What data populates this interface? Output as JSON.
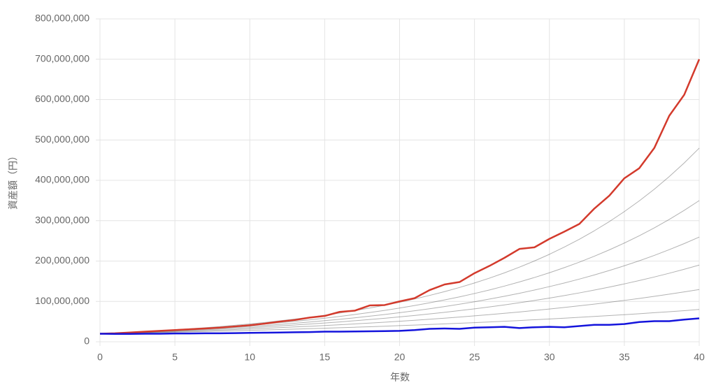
{
  "chart_data": {
    "type": "line",
    "x_label": "年数",
    "y_label": "資産額（円）",
    "x": [
      0,
      1,
      2,
      3,
      4,
      5,
      6,
      7,
      8,
      9,
      10,
      11,
      12,
      13,
      14,
      15,
      16,
      17,
      18,
      19,
      20,
      21,
      22,
      23,
      24,
      25,
      26,
      27,
      28,
      29,
      30,
      31,
      32,
      33,
      34,
      35,
      36,
      37,
      38,
      39,
      40
    ],
    "xlim": [
      0,
      40
    ],
    "xticks": [
      0,
      5,
      10,
      15,
      20,
      25,
      30,
      35,
      40
    ],
    "ylim": [
      0,
      800000000
    ],
    "yticks": [
      0,
      {
        "value": 100000000,
        "label": "100,000,000"
      },
      {
        "value": 200000000,
        "label": "200,000,000"
      },
      {
        "value": 300000000,
        "label": "300,000,000"
      },
      {
        "value": 400000000,
        "label": "400,000,000"
      },
      {
        "value": 500000000,
        "label": "500,000,000"
      },
      {
        "value": 600000000,
        "label": "600,000,000"
      },
      {
        "value": 700000000,
        "label": "700,000,000"
      },
      {
        "value": 800000000,
        "label": "800,000,000"
      }
    ],
    "grid": true,
    "series": [
      {
        "color": "rgba(0,0,0,0.3)",
        "values": [
          20000000,
          20700000,
          21400000,
          22200000,
          23000000,
          23800000,
          24600000,
          25500000,
          26400000,
          27300000,
          28300000,
          29300000,
          30300000,
          31400000,
          32500000,
          33600000,
          34800000,
          36000000,
          37300000,
          38600000,
          40000000,
          41400000,
          42800000,
          44300000,
          45900000,
          47500000,
          49200000,
          50900000,
          52700000,
          54600000,
          56500000,
          58500000,
          60500000,
          62700000,
          64900000,
          67200000,
          69500000,
          72000000,
          74500000,
          77100000,
          80000000
        ]
      },
      {
        "color": "rgba(0,0,0,0.3)",
        "values": [
          20000000,
          21000000,
          22000000,
          23000000,
          24100000,
          25300000,
          26500000,
          27700000,
          29100000,
          30400000,
          31900000,
          33400000,
          35000000,
          36700000,
          38400000,
          40300000,
          42200000,
          44200000,
          46300000,
          48500000,
          50800000,
          53300000,
          55800000,
          58500000,
          61300000,
          64200000,
          67300000,
          70500000,
          73900000,
          77400000,
          81100000,
          85000000,
          89100000,
          93300000,
          97800000,
          102500000,
          107400000,
          112500000,
          117900000,
          123600000,
          129500000
        ]
      },
      {
        "color": "rgba(0,0,0,0.3)",
        "values": [
          20000000,
          21200000,
          22400000,
          23700000,
          25000000,
          26500000,
          28000000,
          29600000,
          31400000,
          33200000,
          35100000,
          37100000,
          39300000,
          41600000,
          44000000,
          46500000,
          49200000,
          52100000,
          55100000,
          58300000,
          61600000,
          65200000,
          69000000,
          73000000,
          77200000,
          81700000,
          86400000,
          91400000,
          96700000,
          102300000,
          108200000,
          114500000,
          121100000,
          128100000,
          135500000,
          143400000,
          151700000,
          160500000,
          169800000,
          179600000,
          190000000
        ]
      },
      {
        "color": "rgba(0,0,0,0.3)",
        "values": [
          20000000,
          21300000,
          22700000,
          24200000,
          25800000,
          27500000,
          29400000,
          31300000,
          33400000,
          35600000,
          38000000,
          40500000,
          43100000,
          46000000,
          49000000,
          52300000,
          55700000,
          59400000,
          63400000,
          67500000,
          72000000,
          76800000,
          81900000,
          87300000,
          93000000,
          99200000,
          105800000,
          112800000,
          120200000,
          128200000,
          136700000,
          145700000,
          155300000,
          165600000,
          176600000,
          188300000,
          200700000,
          214000000,
          228200000,
          243300000,
          259400000
        ]
      },
      {
        "color": "rgba(0,0,0,0.3)",
        "values": [
          20000000,
          21500000,
          23100000,
          24800000,
          26600000,
          28600000,
          30700000,
          33000000,
          35400000,
          38100000,
          40900000,
          43900000,
          47200000,
          50700000,
          54400000,
          58500000,
          62800000,
          67500000,
          72500000,
          77800000,
          83600000,
          89800000,
          96500000,
          103600000,
          111300000,
          119600000,
          128400000,
          138000000,
          148200000,
          159200000,
          171000000,
          183700000,
          197300000,
          212000000,
          227700000,
          244600000,
          262700000,
          282200000,
          303200000,
          325700000,
          349800000
        ]
      },
      {
        "color": "rgba(0,0,0,0.3)",
        "values": [
          20000000,
          21700000,
          23400000,
          25400000,
          27500000,
          29700000,
          32200000,
          34900000,
          37700000,
          40900000,
          44200000,
          47900000,
          51900000,
          56200000,
          60800000,
          65800000,
          71300000,
          77200000,
          83500000,
          90500000,
          97900000,
          106000000,
          114800000,
          124300000,
          134500000,
          145700000,
          157700000,
          170800000,
          184900000,
          200200000,
          216700000,
          234700000,
          254100000,
          275100000,
          297800000,
          322500000,
          349100000,
          378000000,
          409300000,
          443100000,
          479800000
        ]
      },
      {
        "color": "#d33a2c",
        "values": [
          20000000,
          21000000,
          23000000,
          25000000,
          27000000,
          29000000,
          31000000,
          33000000,
          35000000,
          38000000,
          41000000,
          45000000,
          50000000,
          54000000,
          60000000,
          64000000,
          74000000,
          77000000,
          90000000,
          91000000,
          100000000,
          108000000,
          128000000,
          142000000,
          148000000,
          170000000,
          188000000,
          208000000,
          230000000,
          234000000,
          255000000,
          273000000,
          292000000,
          330000000,
          362000000,
          405000000,
          430000000,
          480000000,
          560000000,
          612000000,
          700000000
        ]
      },
      {
        "color": "#1414dc",
        "values": [
          20000000,
          19500000,
          19500000,
          20000000,
          20000000,
          20500000,
          20500000,
          21000000,
          21000000,
          21500000,
          22000000,
          22500000,
          23000000,
          23500000,
          24000000,
          25000000,
          25000000,
          25500000,
          26000000,
          26500000,
          27000000,
          29000000,
          32000000,
          33000000,
          32000000,
          35000000,
          36000000,
          37000000,
          34000000,
          36000000,
          37000000,
          36000000,
          39000000,
          42000000,
          42000000,
          44000000,
          49000000,
          51000000,
          51000000,
          55000000,
          58000000
        ]
      }
    ]
  }
}
